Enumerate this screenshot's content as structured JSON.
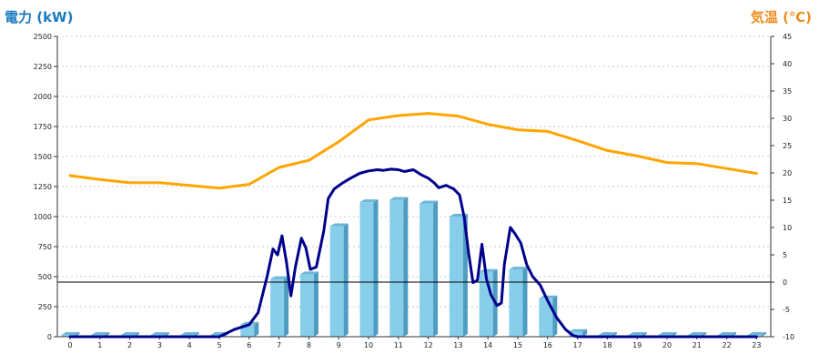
{
  "chart_data": {
    "type": "bar",
    "left_axis": {
      "title": "電力 (kW)",
      "min": 0,
      "max": 2500,
      "step": 250,
      "color": "#1a7bbf"
    },
    "right_axis": {
      "title": "気温 (℃)",
      "min": -10,
      "max": 45,
      "step": 5,
      "color": "#f08c1e"
    },
    "x_ticks": [
      "0",
      "1",
      "2",
      "3",
      "4",
      "5",
      "6",
      "7",
      "8",
      "9",
      "10",
      "11",
      "12",
      "13",
      "14",
      "15",
      "16",
      "17",
      "18",
      "19",
      "20",
      "21",
      "22",
      "23"
    ],
    "grid": "horizontal dashed",
    "reference_line": {
      "axis": "right",
      "value": 0,
      "color": "#000000"
    },
    "bars": {
      "axis": "left",
      "color": "#87ceeb",
      "values": [
        15,
        15,
        15,
        15,
        15,
        15,
        100,
        480,
        520,
        920,
        1120,
        1140,
        1110,
        1000,
        540,
        560,
        320,
        40,
        15,
        15,
        15,
        15,
        15,
        15
      ]
    },
    "temperature_line": {
      "axis": "right",
      "color": "#ffa500",
      "points": [
        [
          0,
          19.5
        ],
        [
          1,
          18.8
        ],
        [
          2,
          18.2
        ],
        [
          3,
          18.2
        ],
        [
          4,
          17.7
        ],
        [
          5,
          17.2
        ],
        [
          6,
          17.9
        ],
        [
          7,
          21.0
        ],
        [
          8,
          22.3
        ],
        [
          9,
          25.7
        ],
        [
          10,
          29.7
        ],
        [
          11,
          30.5
        ],
        [
          12,
          30.9
        ],
        [
          13,
          30.4
        ],
        [
          14,
          28.9
        ],
        [
          15,
          27.9
        ],
        [
          16,
          27.6
        ],
        [
          17,
          25.9
        ],
        [
          18,
          24.1
        ],
        [
          19,
          23.1
        ],
        [
          20,
          21.9
        ],
        [
          21,
          21.7
        ],
        [
          22,
          20.8
        ],
        [
          23,
          19.9
        ]
      ]
    },
    "power_line": {
      "axis": "left",
      "color": "#00008b",
      "points": [
        [
          0,
          0
        ],
        [
          1,
          0
        ],
        [
          2,
          0
        ],
        [
          3,
          0
        ],
        [
          4,
          0
        ],
        [
          5,
          0
        ],
        [
          5.5,
          60
        ],
        [
          6,
          100
        ],
        [
          6.3,
          200
        ],
        [
          6.6,
          500
        ],
        [
          6.8,
          730
        ],
        [
          6.95,
          680
        ],
        [
          7.1,
          840
        ],
        [
          7.25,
          620
        ],
        [
          7.4,
          340
        ],
        [
          7.55,
          580
        ],
        [
          7.75,
          820
        ],
        [
          7.9,
          740
        ],
        [
          8.05,
          560
        ],
        [
          8.25,
          580
        ],
        [
          8.5,
          880
        ],
        [
          8.65,
          1150
        ],
        [
          8.85,
          1230
        ],
        [
          9.1,
          1275
        ],
        [
          9.4,
          1320
        ],
        [
          9.7,
          1360
        ],
        [
          10,
          1380
        ],
        [
          10.3,
          1390
        ],
        [
          10.5,
          1385
        ],
        [
          10.75,
          1395
        ],
        [
          11,
          1390
        ],
        [
          11.2,
          1375
        ],
        [
          11.5,
          1390
        ],
        [
          11.75,
          1350
        ],
        [
          12,
          1320
        ],
        [
          12.2,
          1280
        ],
        [
          12.35,
          1240
        ],
        [
          12.6,
          1260
        ],
        [
          12.85,
          1230
        ],
        [
          13.05,
          1180
        ],
        [
          13.2,
          1000
        ],
        [
          13.35,
          700
        ],
        [
          13.5,
          450
        ],
        [
          13.65,
          470
        ],
        [
          13.8,
          770
        ],
        [
          13.95,
          480
        ],
        [
          14.1,
          350
        ],
        [
          14.3,
          260
        ],
        [
          14.45,
          280
        ],
        [
          14.55,
          600
        ],
        [
          14.75,
          910
        ],
        [
          14.9,
          860
        ],
        [
          15.1,
          780
        ],
        [
          15.3,
          600
        ],
        [
          15.5,
          500
        ],
        [
          15.75,
          430
        ],
        [
          16,
          300
        ],
        [
          16.3,
          160
        ],
        [
          16.6,
          60
        ],
        [
          16.85,
          10
        ],
        [
          17,
          0
        ],
        [
          18,
          0
        ],
        [
          19,
          0
        ],
        [
          20,
          0
        ],
        [
          21,
          0
        ],
        [
          22,
          0
        ],
        [
          23,
          0
        ]
      ]
    }
  }
}
